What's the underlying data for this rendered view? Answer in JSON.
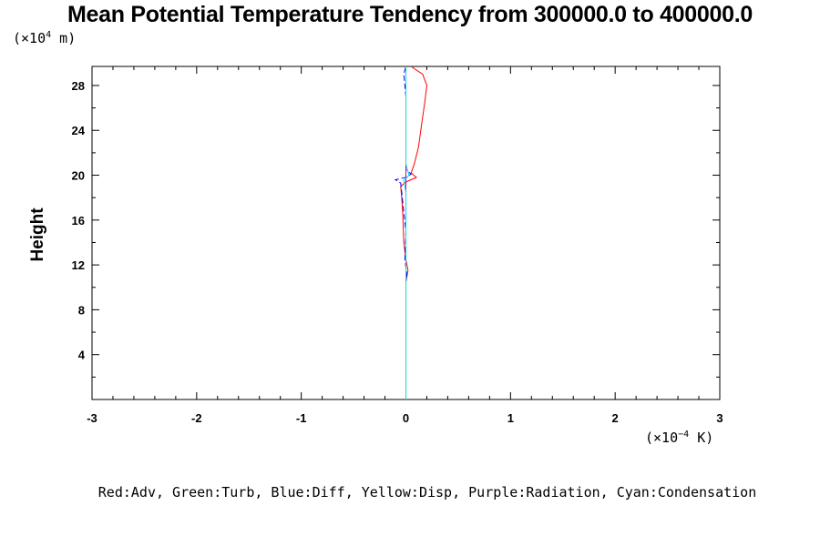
{
  "title": "Mean Potential Temperature Tendency from 300000.0 to 400000.0",
  "y_unit_prefix": "(×10",
  "y_unit_exp": "4",
  "y_unit_suffix": " m)",
  "x_unit_prefix": "(×10",
  "x_unit_exp": "−4",
  "x_unit_suffix": " K)",
  "legend_text": "Red:Adv, Green:Turb, Blue:Diff, Yellow:Disp, Purple:Radiation, Cyan:Condensation",
  "chart_data": {
    "type": "line",
    "title": "Mean Potential Temperature Tendency from 300000.0 to 400000.0",
    "xlabel": "",
    "ylabel": "Height",
    "x_scale_note": "(×10⁻⁴ K)",
    "y_scale_note": "(×10⁴ m)",
    "xlim": [
      -3,
      3
    ],
    "ylim": [
      0,
      29.7
    ],
    "x_ticks": [
      -3,
      -2,
      -1,
      0,
      1,
      2,
      3
    ],
    "y_ticks": [
      4,
      8,
      12,
      16,
      20,
      24,
      28
    ],
    "grid": false,
    "legend_placement": "bottom",
    "series": [
      {
        "name": "Adv",
        "color": "#ff0000",
        "points": [
          [
            0.0,
            0.0
          ],
          [
            0.0,
            10.5
          ],
          [
            0.02,
            11.5
          ],
          [
            0.0,
            12.5
          ],
          [
            -0.02,
            14.0
          ],
          [
            -0.03,
            16.5
          ],
          [
            -0.04,
            18.0
          ],
          [
            -0.05,
            19.0
          ],
          [
            0.0,
            19.4
          ],
          [
            0.05,
            19.6
          ],
          [
            0.1,
            19.8
          ],
          [
            0.05,
            20.2
          ],
          [
            0.08,
            21.0
          ],
          [
            0.12,
            22.5
          ],
          [
            0.15,
            24.5
          ],
          [
            0.18,
            26.5
          ],
          [
            0.2,
            28.0
          ],
          [
            0.16,
            29.0
          ],
          [
            0.05,
            29.7
          ]
        ]
      },
      {
        "name": "Turb",
        "color": "#00c000",
        "points": [
          [
            0.0,
            0.0
          ],
          [
            0.0,
            29.7
          ]
        ]
      },
      {
        "name": "Diff",
        "color": "#0000ff",
        "points": [
          [
            0.0,
            0.0
          ],
          [
            0.0,
            10.5
          ],
          [
            0.01,
            11.0
          ],
          [
            -0.01,
            12.5
          ],
          [
            0.0,
            15.0
          ],
          [
            -0.05,
            19.3
          ],
          [
            -0.1,
            19.6
          ],
          [
            0.0,
            19.8
          ],
          [
            0.05,
            20.1
          ],
          [
            0.0,
            20.5
          ],
          [
            0.0,
            24.0
          ],
          [
            0.0,
            27.0
          ],
          [
            -0.02,
            29.0
          ],
          [
            0.0,
            29.7
          ]
        ]
      },
      {
        "name": "Disp",
        "color": "#ffff00",
        "points": [
          [
            0.0,
            0.0
          ],
          [
            0.0,
            29.7
          ]
        ]
      },
      {
        "name": "Radiation",
        "color": "#c000c0",
        "points": [
          [
            0.0,
            0.0
          ],
          [
            0.0,
            29.7
          ]
        ]
      },
      {
        "name": "Condensation",
        "color": "#00e0e0",
        "points": [
          [
            0.0,
            0.0
          ],
          [
            0.0,
            18.5
          ],
          [
            -0.02,
            19.5
          ],
          [
            0.03,
            20.0
          ],
          [
            0.0,
            21.0
          ],
          [
            0.0,
            29.7
          ]
        ]
      }
    ]
  }
}
